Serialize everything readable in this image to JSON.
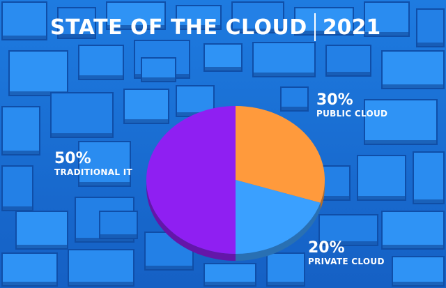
{
  "header": {
    "title": "STATE OF THE CLOUD",
    "year": "2021"
  },
  "chart_data": {
    "type": "pie",
    "title": "STATE OF THE CLOUD | 2021",
    "slices": [
      {
        "label": "PUBLIC CLOUD",
        "value": 30,
        "value_label": "30%",
        "color": "#ff9a3c"
      },
      {
        "label": "PRIVATE CLOUD",
        "value": 20,
        "value_label": "20%",
        "color": "#3aa0ff"
      },
      {
        "label": "TRADITIONAL IT",
        "value": 50,
        "value_label": "50%",
        "color": "#8f1ff2"
      }
    ]
  },
  "colors": {
    "background": "#1a6fd6",
    "text": "#ffffff"
  }
}
